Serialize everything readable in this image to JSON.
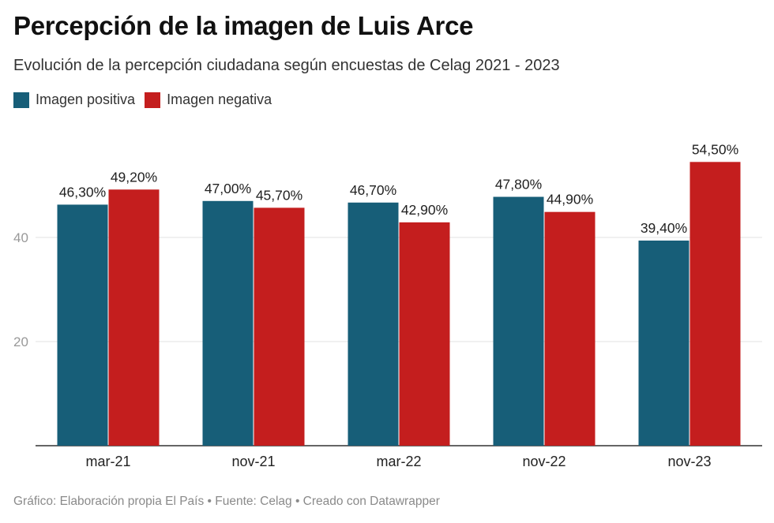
{
  "header": {
    "title": "Percepción de la imagen de Luis Arce",
    "subtitle": "Evolución de la percepción ciudadana según encuestas de Celag 2021 - 2023"
  },
  "legend": {
    "items": [
      {
        "label": "Imagen positiva",
        "color": "#175e78"
      },
      {
        "label": "Imagen negativa",
        "color": "#c41e1e"
      }
    ]
  },
  "footer": {
    "text": "Gráfico: Elaboración propia El País • Fuente: Celag • Creado con Datawrapper"
  },
  "chart_data": {
    "type": "bar",
    "title": "Percepción de la imagen de Luis Arce",
    "subtitle": "Evolución de la percepción ciudadana según encuestas de Celag 2021 - 2023",
    "categories": [
      "mar-21",
      "nov-21",
      "mar-22",
      "nov-22",
      "nov-23"
    ],
    "series": [
      {
        "name": "Imagen positiva",
        "color": "#175e78",
        "values": [
          46.3,
          47.0,
          46.7,
          47.8,
          39.4
        ],
        "labels": [
          "46,30%",
          "47,00%",
          "46,70%",
          "47,80%",
          "39,40%"
        ]
      },
      {
        "name": "Imagen negativa",
        "color": "#c41e1e",
        "values": [
          49.2,
          45.7,
          42.9,
          44.9,
          54.5
        ],
        "labels": [
          "49,20%",
          "45,70%",
          "42,90%",
          "44,90%",
          "54,50%"
        ]
      }
    ],
    "y_ticks": [
      20,
      40
    ],
    "ylim": [
      0,
      60
    ],
    "grid": true,
    "legend_position": "top-left"
  }
}
